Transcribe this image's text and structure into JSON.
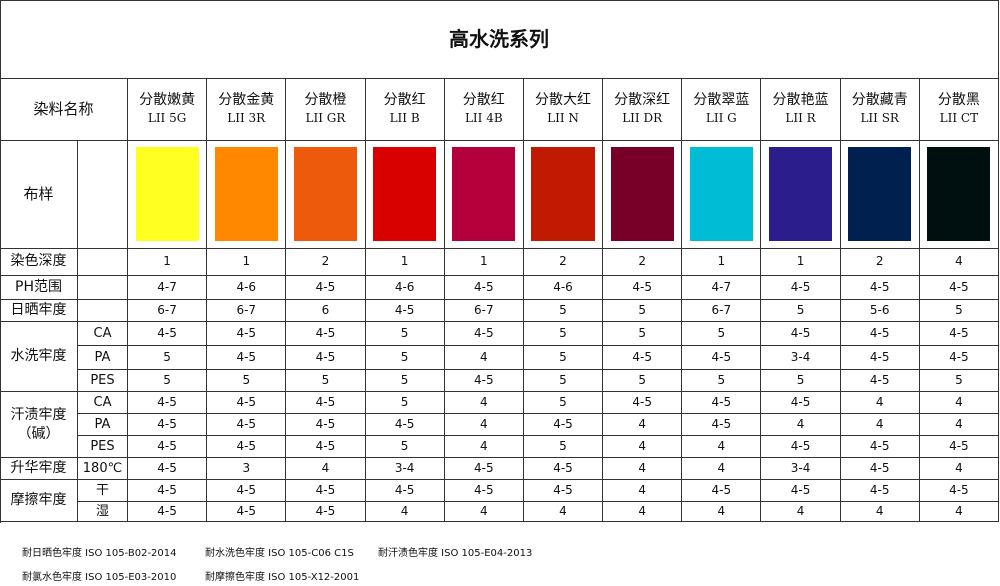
{
  "title": "高水洗系列",
  "header_label": "染料名称",
  "swatch_label": "布样",
  "dyes": [
    {
      "name": "分散嫩黄",
      "code": "LII 5G",
      "color": "#ffff22"
    },
    {
      "name": "分散金黄",
      "code": "LII 3R",
      "color": "#ff8800"
    },
    {
      "name": "分散橙",
      "code": "LII GR",
      "color": "#ee5a0c"
    },
    {
      "name": "分散红",
      "code": "LII B",
      "color": "#d90000"
    },
    {
      "name": "分散红",
      "code": "LII 4B",
      "color": "#b3003c"
    },
    {
      "name": "分散大红",
      "code": "LII N",
      "color": "#c01a00"
    },
    {
      "name": "分散深红",
      "code": "LII DR",
      "color": "#780028"
    },
    {
      "name": "分散翠蓝",
      "code": "LII G",
      "color": "#00bcd4"
    },
    {
      "name": "分散艳蓝",
      "code": "LII R",
      "color": "#2b1e8c"
    },
    {
      "name": "分散藏青",
      "code": "LII SR",
      "color": "#002050"
    },
    {
      "name": "分散黑",
      "code": "LII CT",
      "color": "#001010"
    }
  ],
  "groups": [
    {
      "label": "染色深度",
      "rows": [
        {
          "values": [
            "1",
            "1",
            "2",
            "1",
            "1",
            "2",
            "2",
            "1",
            "1",
            "2",
            "4"
          ]
        }
      ]
    },
    {
      "label": "PH范围",
      "rows": [
        {
          "values": [
            "4-7",
            "4-6",
            "4-5",
            "4-6",
            "4-5",
            "4-6",
            "4-5",
            "4-7",
            "4-5",
            "4-5",
            "4-5"
          ]
        }
      ]
    },
    {
      "label": "日晒牢度",
      "rows": [
        {
          "values": [
            "6-7",
            "6-7",
            "6",
            "4-5",
            "6-7",
            "5",
            "5",
            "6-7",
            "5",
            "5-6",
            "5"
          ]
        }
      ]
    },
    {
      "label": "水洗牢度",
      "rows": [
        {
          "sub": "CA",
          "values": [
            "4-5",
            "4-5",
            "4-5",
            "5",
            "4-5",
            "5",
            "5",
            "5",
            "4-5",
            "4-5",
            "4-5"
          ]
        },
        {
          "sub": "PA",
          "values": [
            "5",
            "4-5",
            "4-5",
            "5",
            "4",
            "5",
            "4-5",
            "4-5",
            "3-4",
            "4-5",
            "4-5"
          ]
        },
        {
          "sub": "PES",
          "values": [
            "5",
            "5",
            "5",
            "5",
            "4-5",
            "5",
            "5",
            "5",
            "5",
            "4-5",
            "5"
          ]
        }
      ]
    },
    {
      "label": "汗渍牢度\n（碱）",
      "rows": [
        {
          "sub": "CA",
          "values": [
            "4-5",
            "4-5",
            "4-5",
            "5",
            "4",
            "5",
            "4-5",
            "4-5",
            "4-5",
            "4",
            "4"
          ]
        },
        {
          "sub": "PA",
          "values": [
            "4-5",
            "4-5",
            "4-5",
            "4-5",
            "4",
            "4-5",
            "4",
            "4-5",
            "4",
            "4",
            "4"
          ]
        },
        {
          "sub": "PES",
          "values": [
            "4-5",
            "4-5",
            "4-5",
            "5",
            "4",
            "5",
            "4",
            "4",
            "4-5",
            "4-5",
            "4-5"
          ]
        }
      ]
    },
    {
      "label": "升华牢度",
      "rows": [
        {
          "sub": "180℃",
          "values": [
            "4-5",
            "3",
            "4",
            "3-4",
            "4-5",
            "4-5",
            "4",
            "4",
            "3-4",
            "4-5",
            "4"
          ]
        }
      ]
    },
    {
      "label": "摩擦牢度",
      "rows": [
        {
          "sub": "干",
          "values": [
            "4-5",
            "4-5",
            "4-5",
            "4-5",
            "4-5",
            "4-5",
            "4",
            "4-5",
            "4-5",
            "4-5",
            "4-5"
          ]
        },
        {
          "sub": "湿",
          "values": [
            "4-5",
            "4-5",
            "4-5",
            "4",
            "4",
            "4",
            "4",
            "4",
            "4",
            "4",
            "4"
          ]
        }
      ]
    }
  ],
  "notes": [
    "耐日晒色牢度 ISO 105-B02-2014",
    "耐水洗色牢度 ISO 105-C06 C1S",
    "耐汗渍色牢度 ISO 105-E04-2013",
    "耐氯水色牢度 ISO 105-E03-2010",
    "耐摩擦色牢度 ISO 105-X12-2001"
  ]
}
